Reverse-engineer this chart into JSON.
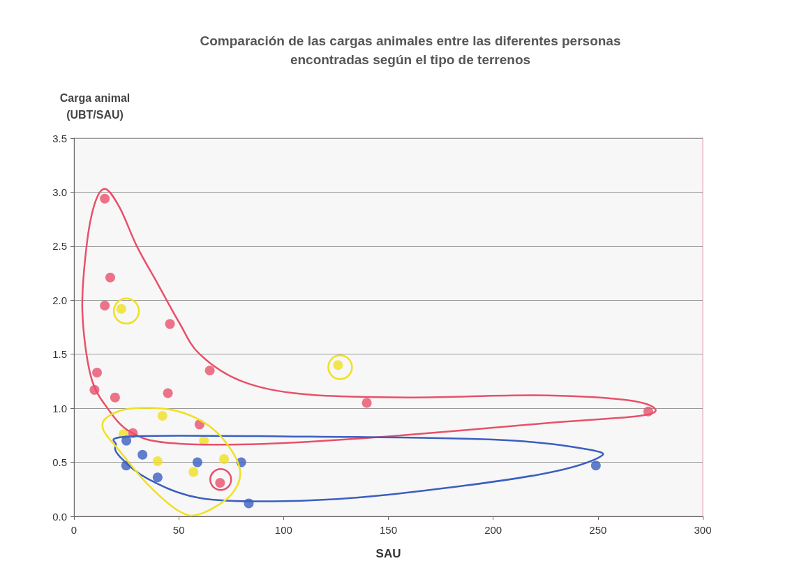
{
  "chart_data": {
    "type": "scatter",
    "title": "Comparación de las cargas animales entre las diferentes personas\nencontradas según el tipo de terrenos",
    "xlabel": "SAU",
    "ylabel": "Carga animal\n(UBT/SAU)",
    "xlim": [
      0,
      300
    ],
    "xticks": [
      0,
      50,
      100,
      150,
      200,
      250,
      300
    ],
    "ylim": [
      0,
      3.5
    ],
    "yticks": [
      {
        "value": 0,
        "label": "0.0"
      },
      {
        "value": 0.5,
        "label": "0.5"
      },
      {
        "value": 1,
        "label": "1.0"
      },
      {
        "value": 1.5,
        "label": "1.5"
      },
      {
        "value": 2,
        "label": "2.0"
      },
      {
        "value": 2.5,
        "label": "2.5"
      },
      {
        "value": 3,
        "label": "3.0"
      },
      3.5
    ],
    "grid": "y",
    "marker": "circle",
    "series": [
      {
        "color": "#e8506a",
        "x": [
          14.7,
          17.3,
          14.7,
          45.8,
          11,
          9.8,
          19.6,
          44.8,
          64.8,
          59.9,
          28.1,
          69.7,
          139.7,
          274
        ],
        "values": [
          2.94,
          2.21,
          1.95,
          1.78,
          1.33,
          1.17,
          1.1,
          1.14,
          1.35,
          0.85,
          0.77,
          0.31,
          1.05,
          0.97
        ]
      },
      {
        "color": "#f0e020",
        "x": [
          22.6,
          126,
          42.2,
          23.6,
          62,
          39.9,
          57,
          71.6
        ],
        "values": [
          1.92,
          1.4,
          0.93,
          0.76,
          0.7,
          0.51,
          0.41,
          0.53
        ]
      },
      {
        "color": "#3a5fc0",
        "x": [
          25,
          32.7,
          24.9,
          39.9,
          58.9,
          79.8,
          83.4,
          249
        ],
        "values": [
          0.7,
          0.57,
          0.47,
          0.36,
          0.5,
          0.5,
          0.12,
          0.47
        ]
      }
    ]
  }
}
